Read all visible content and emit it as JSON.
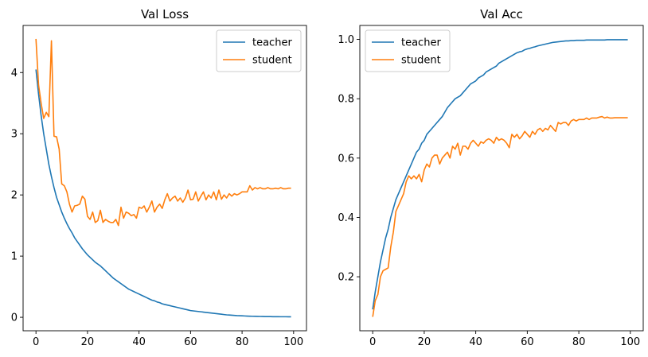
{
  "chart_data": [
    {
      "type": "line",
      "title": "Val Loss",
      "xlabel": "",
      "ylabel": "",
      "xlim": [
        -5,
        105
      ],
      "ylim": [
        -0.22,
        4.77
      ],
      "xticks": [
        0,
        20,
        40,
        60,
        80,
        100
      ],
      "yticks": [
        0,
        1,
        2,
        3,
        4
      ],
      "legend_loc": "upper right",
      "grid": false,
      "series": [
        {
          "name": "teacher",
          "color": "#1f77b4",
          "x": [
            0,
            1,
            2,
            3,
            4,
            5,
            6,
            7,
            8,
            9,
            10,
            11,
            12,
            13,
            14,
            15,
            16,
            17,
            18,
            19,
            20,
            21,
            22,
            23,
            24,
            25,
            26,
            27,
            28,
            29,
            30,
            31,
            32,
            33,
            34,
            35,
            36,
            37,
            38,
            39,
            40,
            41,
            42,
            43,
            44,
            45,
            46,
            47,
            48,
            49,
            50,
            51,
            52,
            53,
            54,
            55,
            56,
            57,
            58,
            59,
            60,
            61,
            62,
            63,
            64,
            65,
            66,
            67,
            68,
            69,
            70,
            71,
            72,
            73,
            74,
            75,
            76,
            77,
            78,
            79,
            80,
            81,
            82,
            83,
            84,
            85,
            86,
            87,
            88,
            89,
            90,
            91,
            92,
            93,
            94,
            95,
            96,
            97,
            98,
            99
          ],
          "y": [
            4.05,
            3.65,
            3.3,
            3.0,
            2.75,
            2.5,
            2.3,
            2.12,
            1.96,
            1.84,
            1.72,
            1.62,
            1.53,
            1.45,
            1.38,
            1.3,
            1.24,
            1.18,
            1.12,
            1.07,
            1.02,
            0.98,
            0.94,
            0.9,
            0.87,
            0.84,
            0.8,
            0.76,
            0.72,
            0.68,
            0.64,
            0.61,
            0.58,
            0.55,
            0.52,
            0.49,
            0.46,
            0.44,
            0.42,
            0.4,
            0.38,
            0.36,
            0.34,
            0.32,
            0.3,
            0.28,
            0.27,
            0.25,
            0.24,
            0.22,
            0.21,
            0.2,
            0.19,
            0.18,
            0.17,
            0.16,
            0.15,
            0.14,
            0.13,
            0.12,
            0.11,
            0.105,
            0.1,
            0.095,
            0.09,
            0.085,
            0.08,
            0.075,
            0.07,
            0.065,
            0.06,
            0.055,
            0.05,
            0.045,
            0.04,
            0.037,
            0.034,
            0.031,
            0.028,
            0.026,
            0.024,
            0.022,
            0.02,
            0.018,
            0.017,
            0.016,
            0.015,
            0.014,
            0.013,
            0.012,
            0.011,
            0.011,
            0.01,
            0.01,
            0.01,
            0.009,
            0.009,
            0.009,
            0.008,
            0.008
          ]
        },
        {
          "name": "student",
          "color": "#ff7f0e",
          "x": [
            0,
            1,
            2,
            3,
            4,
            5,
            6,
            7,
            8,
            9,
            10,
            11,
            12,
            13,
            14,
            15,
            16,
            17,
            18,
            19,
            20,
            21,
            22,
            23,
            24,
            25,
            26,
            27,
            28,
            29,
            30,
            31,
            32,
            33,
            34,
            35,
            36,
            37,
            38,
            39,
            40,
            41,
            42,
            43,
            44,
            45,
            46,
            47,
            48,
            49,
            50,
            51,
            52,
            53,
            54,
            55,
            56,
            57,
            58,
            59,
            60,
            61,
            62,
            63,
            64,
            65,
            66,
            67,
            68,
            69,
            70,
            71,
            72,
            73,
            74,
            75,
            76,
            77,
            78,
            79,
            80,
            81,
            82,
            83,
            84,
            85,
            86,
            87,
            88,
            89,
            90,
            91,
            92,
            93,
            94,
            95,
            96,
            97,
            98,
            99
          ],
          "y": [
            4.55,
            3.8,
            3.5,
            3.25,
            3.35,
            3.28,
            4.52,
            2.96,
            2.95,
            2.75,
            2.18,
            2.15,
            2.05,
            1.85,
            1.72,
            1.82,
            1.83,
            1.85,
            1.98,
            1.93,
            1.65,
            1.6,
            1.72,
            1.55,
            1.58,
            1.75,
            1.55,
            1.6,
            1.57,
            1.55,
            1.55,
            1.6,
            1.5,
            1.8,
            1.62,
            1.72,
            1.7,
            1.66,
            1.68,
            1.62,
            1.8,
            1.78,
            1.82,
            1.72,
            1.8,
            1.9,
            1.72,
            1.8,
            1.85,
            1.78,
            1.92,
            2.02,
            1.9,
            1.95,
            1.98,
            1.9,
            1.95,
            1.88,
            1.95,
            2.08,
            1.92,
            1.93,
            2.05,
            1.9,
            1.98,
            2.05,
            1.92,
            2.0,
            1.95,
            2.05,
            1.92,
            2.08,
            1.93,
            2.0,
            1.95,
            2.02,
            1.98,
            2.02,
            2.0,
            2.02,
            2.05,
            2.05,
            2.05,
            2.15,
            2.08,
            2.12,
            2.1,
            2.12,
            2.1,
            2.1,
            2.12,
            2.1,
            2.1,
            2.11,
            2.1,
            2.12,
            2.1,
            2.1,
            2.11,
            2.11
          ]
        }
      ]
    },
    {
      "type": "line",
      "title": "Val Acc",
      "xlabel": "",
      "ylabel": "",
      "xlim": [
        -5,
        105
      ],
      "ylim": [
        0.018,
        1.047
      ],
      "xticks": [
        0,
        20,
        40,
        60,
        80,
        100
      ],
      "yticks": [
        0.2,
        0.4,
        0.6,
        0.8,
        1.0
      ],
      "ytick_labels": [
        "0.2",
        "0.4",
        "0.6",
        "0.8",
        "1.0"
      ],
      "legend_loc": "upper left",
      "grid": false,
      "series": [
        {
          "name": "teacher",
          "color": "#1f77b4",
          "x": [
            0,
            1,
            2,
            3,
            4,
            5,
            6,
            7,
            8,
            9,
            10,
            11,
            12,
            13,
            14,
            15,
            16,
            17,
            18,
            19,
            20,
            21,
            22,
            23,
            24,
            25,
            26,
            27,
            28,
            29,
            30,
            31,
            32,
            33,
            34,
            35,
            36,
            37,
            38,
            39,
            40,
            41,
            42,
            43,
            44,
            45,
            46,
            47,
            48,
            49,
            50,
            51,
            52,
            53,
            54,
            55,
            56,
            57,
            58,
            59,
            60,
            61,
            62,
            63,
            64,
            65,
            66,
            67,
            68,
            69,
            70,
            71,
            72,
            73,
            74,
            75,
            76,
            77,
            78,
            79,
            80,
            81,
            82,
            83,
            84,
            85,
            86,
            87,
            88,
            89,
            90,
            91,
            92,
            93,
            94,
            95,
            96,
            97,
            98,
            99
          ],
          "y": [
            0.09,
            0.15,
            0.2,
            0.25,
            0.29,
            0.33,
            0.36,
            0.4,
            0.43,
            0.46,
            0.48,
            0.5,
            0.52,
            0.54,
            0.56,
            0.58,
            0.6,
            0.62,
            0.63,
            0.65,
            0.66,
            0.68,
            0.69,
            0.7,
            0.71,
            0.72,
            0.73,
            0.74,
            0.755,
            0.77,
            0.78,
            0.79,
            0.8,
            0.805,
            0.81,
            0.82,
            0.83,
            0.84,
            0.85,
            0.855,
            0.86,
            0.87,
            0.875,
            0.88,
            0.89,
            0.895,
            0.9,
            0.905,
            0.91,
            0.92,
            0.925,
            0.93,
            0.935,
            0.94,
            0.945,
            0.95,
            0.955,
            0.958,
            0.96,
            0.965,
            0.968,
            0.97,
            0.973,
            0.975,
            0.978,
            0.98,
            0.982,
            0.984,
            0.986,
            0.988,
            0.99,
            0.991,
            0.992,
            0.993,
            0.994,
            0.995,
            0.995,
            0.996,
            0.996,
            0.997,
            0.997,
            0.997,
            0.997,
            0.998,
            0.998,
            0.998,
            0.998,
            0.998,
            0.998,
            0.998,
            0.998,
            0.999,
            0.999,
            0.999,
            0.999,
            0.999,
            0.999,
            0.999,
            0.999,
            0.999
          ]
        },
        {
          "name": "student",
          "color": "#ff7f0e",
          "x": [
            0,
            1,
            2,
            3,
            4,
            5,
            6,
            7,
            8,
            9,
            10,
            11,
            12,
            13,
            14,
            15,
            16,
            17,
            18,
            19,
            20,
            21,
            22,
            23,
            24,
            25,
            26,
            27,
            28,
            29,
            30,
            31,
            32,
            33,
            34,
            35,
            36,
            37,
            38,
            39,
            40,
            41,
            42,
            43,
            44,
            45,
            46,
            47,
            48,
            49,
            50,
            51,
            52,
            53,
            54,
            55,
            56,
            57,
            58,
            59,
            60,
            61,
            62,
            63,
            64,
            65,
            66,
            67,
            68,
            69,
            70,
            71,
            72,
            73,
            74,
            75,
            76,
            77,
            78,
            79,
            80,
            81,
            82,
            83,
            84,
            85,
            86,
            87,
            88,
            89,
            90,
            91,
            92,
            93,
            94,
            95,
            96,
            97,
            98,
            99
          ],
          "y": [
            0.065,
            0.12,
            0.14,
            0.2,
            0.22,
            0.225,
            0.23,
            0.3,
            0.35,
            0.42,
            0.44,
            0.46,
            0.48,
            0.52,
            0.54,
            0.53,
            0.54,
            0.53,
            0.545,
            0.52,
            0.56,
            0.58,
            0.57,
            0.6,
            0.61,
            0.61,
            0.58,
            0.6,
            0.61,
            0.62,
            0.6,
            0.64,
            0.63,
            0.65,
            0.61,
            0.64,
            0.64,
            0.63,
            0.65,
            0.66,
            0.65,
            0.64,
            0.655,
            0.65,
            0.66,
            0.665,
            0.66,
            0.65,
            0.67,
            0.66,
            0.665,
            0.66,
            0.65,
            0.635,
            0.68,
            0.67,
            0.68,
            0.665,
            0.675,
            0.69,
            0.68,
            0.67,
            0.69,
            0.68,
            0.695,
            0.7,
            0.69,
            0.7,
            0.695,
            0.71,
            0.7,
            0.69,
            0.72,
            0.715,
            0.72,
            0.72,
            0.71,
            0.725,
            0.73,
            0.725,
            0.73,
            0.73,
            0.73,
            0.735,
            0.73,
            0.735,
            0.735,
            0.735,
            0.738,
            0.74,
            0.735,
            0.738,
            0.735,
            0.735,
            0.736,
            0.736,
            0.736,
            0.736,
            0.736,
            0.736
          ]
        }
      ]
    }
  ]
}
